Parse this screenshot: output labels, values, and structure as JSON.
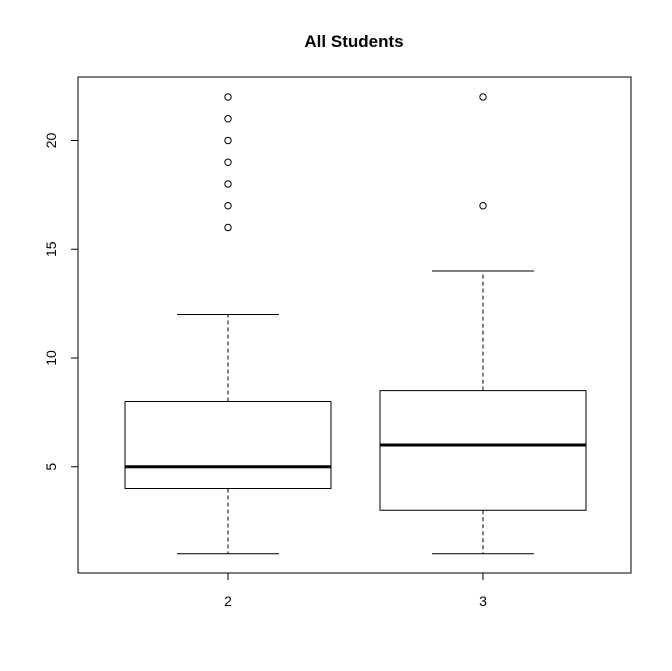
{
  "chart_data": {
    "type": "boxplot",
    "title": "All Students",
    "xlabel": "",
    "ylabel": "",
    "categories": [
      "2",
      "3"
    ],
    "ylim": [
      0,
      23
    ],
    "yticks": [
      5,
      10,
      15,
      20
    ],
    "grid": false,
    "boxes": [
      {
        "category": "2",
        "whisker_low": 1,
        "q1": 4,
        "median": 5,
        "q3": 8,
        "whisker_high": 12,
        "outliers": [
          16,
          17,
          18,
          19,
          20,
          21,
          22
        ]
      },
      {
        "category": "3",
        "whisker_low": 1,
        "q1": 3,
        "median": 6,
        "q3": 8.5,
        "whisker_high": 14,
        "outliers": [
          17,
          22
        ]
      }
    ]
  }
}
